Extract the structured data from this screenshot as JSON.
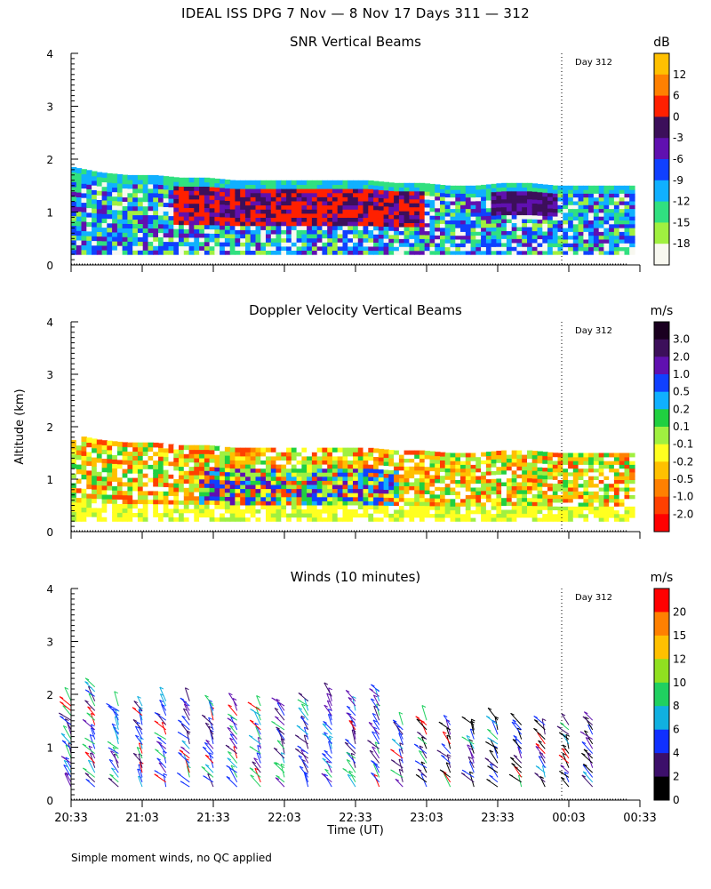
{
  "page": {
    "title": "IDEAL ISS DPG   7 Nov —  8 Nov 17 Days 311 — 312",
    "footnote": "Simple moment winds, no QC applied",
    "ylabel": "Altitude (km)",
    "xlabel": "Time (UT)"
  },
  "chart_data": [
    {
      "type": "heatmap",
      "title": "SNR Vertical Beams",
      "xlabel": "",
      "ylabel": "Altitude (km)",
      "x_ticks": [
        "20:33",
        "21:03",
        "21:33",
        "22:03",
        "22:33",
        "23:03",
        "23:33",
        "00:03",
        "00:33"
      ],
      "xlim": [
        "20:33",
        "00:33"
      ],
      "ylim": [
        0,
        4
      ],
      "y_ticks": [
        0,
        1,
        2,
        3,
        4
      ],
      "day_marker": {
        "time": "00:00",
        "label": "Day 312"
      },
      "colorbar": {
        "unit": "dB",
        "labels": [
          "12",
          "6",
          "0",
          "-3",
          "-6",
          "-9",
          "-12",
          "-15",
          "-18"
        ],
        "colors": [
          "#ffc000",
          "#ff8000",
          "#ff2000",
          "#3c0f5a",
          "#6010b0",
          "#1040ff",
          "#10b0ff",
          "#30e080",
          "#a0f040",
          "#f8f8f0"
        ]
      },
      "echo_top_km": [
        1.85,
        1.75,
        1.7,
        1.7,
        1.65,
        1.65,
        1.6,
        1.6,
        1.6,
        1.6,
        1.6,
        1.6,
        1.55,
        1.55,
        1.5,
        1.5,
        1.55,
        1.55,
        1.5,
        1.5,
        1.5,
        1.5
      ],
      "echo_bottom_km": 0.2
    },
    {
      "type": "heatmap",
      "title": "Doppler Velocity Vertical Beams",
      "xlabel": "",
      "ylabel": "Altitude (km)",
      "x_ticks": [
        "20:33",
        "21:03",
        "21:33",
        "22:03",
        "22:33",
        "23:03",
        "23:33",
        "00:03",
        "00:33"
      ],
      "xlim": [
        "20:33",
        "00:33"
      ],
      "ylim": [
        0,
        4
      ],
      "y_ticks": [
        0,
        1,
        2,
        3,
        4
      ],
      "day_marker": {
        "time": "00:00",
        "label": "Day 312"
      },
      "colorbar": {
        "unit": "m/s",
        "labels": [
          "3.0",
          "2.0",
          "1.0",
          "0.5",
          "0.2",
          "0.1",
          "-0.1",
          "-0.2",
          "-0.5",
          "-1.0",
          "-2.0"
        ],
        "colors": [
          "#1a0020",
          "#3c0f5a",
          "#6010b0",
          "#1040ff",
          "#10b0ff",
          "#20d040",
          "#a0f040",
          "#ffff20",
          "#ffc000",
          "#ff8000",
          "#ff4000",
          "#ff0000"
        ]
      },
      "echo_top_km": [
        1.85,
        1.75,
        1.7,
        1.7,
        1.65,
        1.65,
        1.6,
        1.6,
        1.6,
        1.6,
        1.6,
        1.6,
        1.55,
        1.55,
        1.5,
        1.5,
        1.55,
        1.55,
        1.5,
        1.5,
        1.5,
        1.5
      ],
      "echo_bottom_km": 0.2
    },
    {
      "type": "scatter",
      "title": "Winds (10 minutes)",
      "xlabel": "Time (UT)",
      "ylabel": "Altitude (km)",
      "x_ticks": [
        "20:33",
        "21:03",
        "21:33",
        "22:03",
        "22:33",
        "23:03",
        "23:33",
        "00:03",
        "00:33"
      ],
      "xlim": [
        "20:33",
        "00:33"
      ],
      "ylim": [
        0,
        4
      ],
      "y_ticks": [
        0,
        1,
        2,
        3,
        4
      ],
      "day_marker": {
        "time": "00:00",
        "label": "Day 312"
      },
      "colorbar": {
        "unit": "m/s",
        "labels": [
          "20",
          "15",
          "12",
          "10",
          "8",
          "6",
          "4",
          "2",
          "0"
        ],
        "colors": [
          "#ff0000",
          "#ff8000",
          "#ffc000",
          "#90e020",
          "#20d060",
          "#10b0e0",
          "#1030ff",
          "#3c0f6a",
          "#000000"
        ]
      },
      "profile_times": [
        "20:33",
        "20:43",
        "20:53",
        "21:03",
        "21:13",
        "21:23",
        "21:33",
        "21:43",
        "21:53",
        "22:03",
        "22:13",
        "22:23",
        "22:33",
        "22:43",
        "22:53",
        "23:03",
        "23:13",
        "23:23",
        "23:33",
        "23:43",
        "23:53",
        "00:03",
        "00:13"
      ],
      "profile_top_km": [
        1.9,
        2.2,
        1.85,
        1.85,
        1.9,
        1.9,
        1.85,
        1.85,
        1.85,
        1.8,
        1.9,
        2.05,
        1.95,
        2.1,
        1.5,
        1.6,
        1.5,
        1.5,
        1.6,
        1.5,
        1.5,
        1.5,
        1.55
      ]
    }
  ]
}
